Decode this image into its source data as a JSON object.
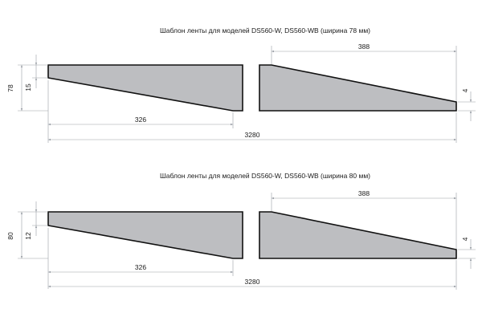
{
  "colors": {
    "tape_fill": "#bdbec1",
    "tape_edge": "#111111",
    "dimension_line": "#9a9fa6",
    "text": "#1a1a1a",
    "background": "#ffffff"
  },
  "templates": [
    {
      "title": "Шаблон ленты для моделей DS560-W, DS560-WB (ширина 78 мм)",
      "dims": {
        "overall_width": "78",
        "left_edge": "15",
        "left_taper_length": "326",
        "right_taper_length": "388",
        "right_edge": "4",
        "total_length": "3280"
      }
    },
    {
      "title": "Шаблон ленты для моделей DS560-W, DS560-WB (ширина 80 мм)",
      "dims": {
        "overall_width": "80",
        "left_edge": "12",
        "left_taper_length": "326",
        "right_taper_length": "388",
        "right_edge": "4",
        "total_length": "3280"
      }
    }
  ]
}
